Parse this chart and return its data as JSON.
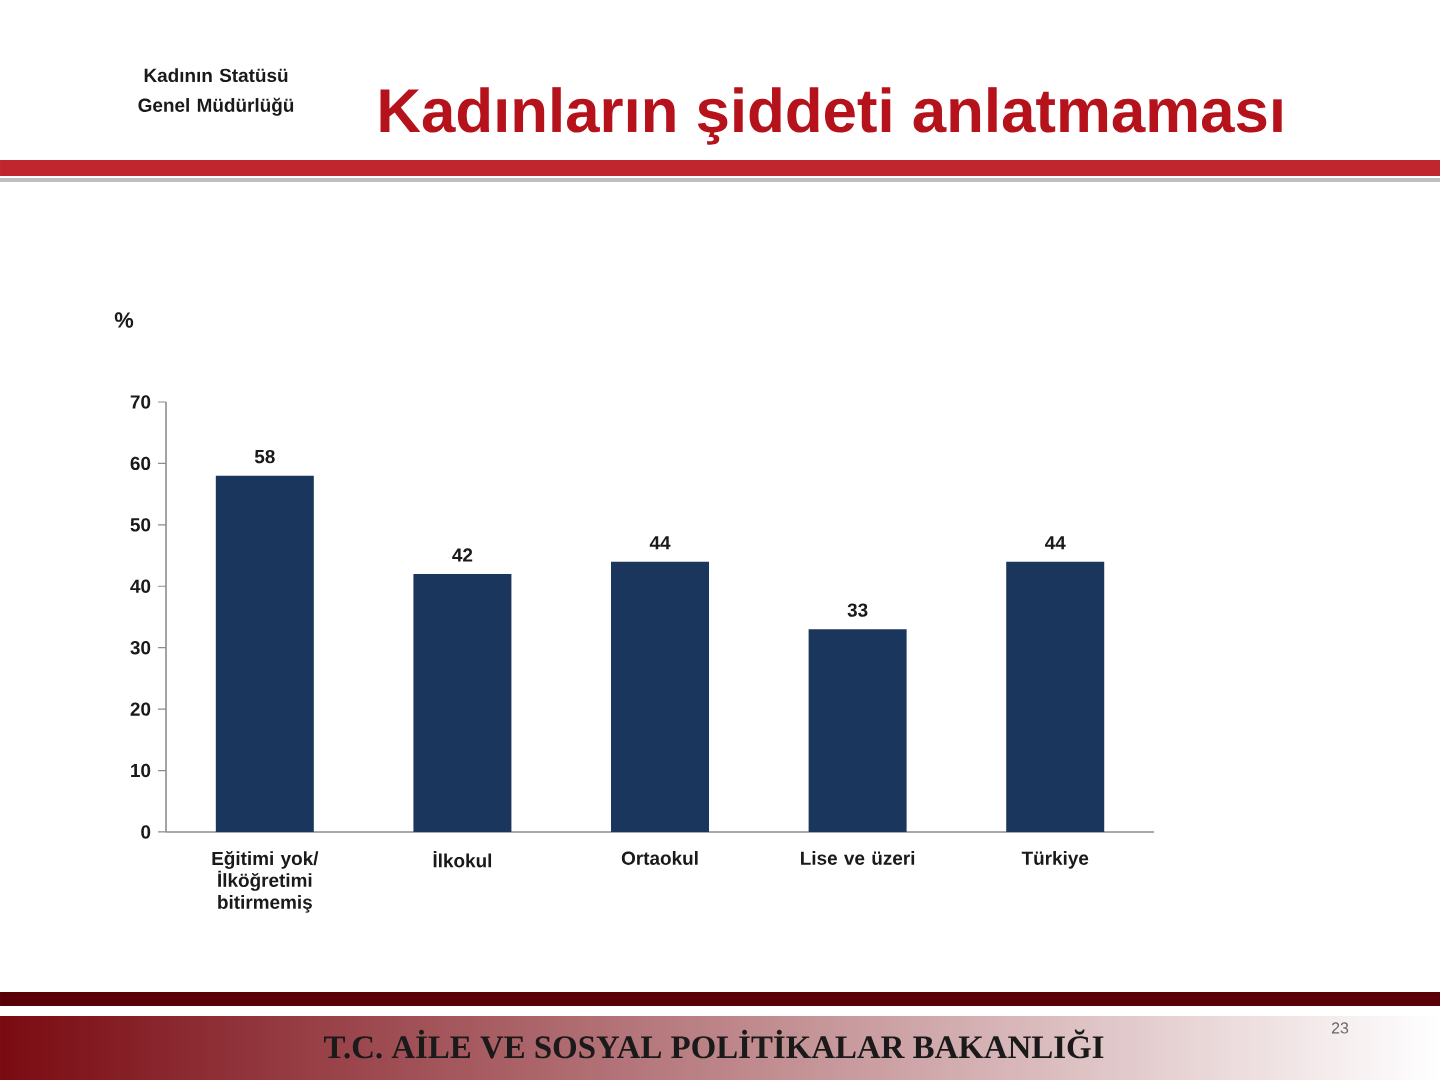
{
  "chart_data": {
    "type": "bar",
    "title": "Kadınların şiddeti anlatmaması",
    "ylabel": "%",
    "categories": [
      "Eğitimi yok/ İlköğretimi bitirmemiş",
      "İlkokul",
      "Ortaokul",
      "Lise ve üzeri",
      "Türkiye"
    ],
    "values": [
      58,
      42,
      44,
      33,
      44
    ],
    "color": "#1b365d",
    "ylim": [
      0,
      70
    ],
    "yticks": [
      0,
      10,
      20,
      30,
      40,
      50,
      60,
      70
    ],
    "data_labels": true,
    "annotations": [
      "Kadının Statüsü Genel Müdürlüğü",
      "T.C. AİLE VE SOSYAL POLİTİKALAR BAKANLIĞI",
      "23"
    ]
  }
}
